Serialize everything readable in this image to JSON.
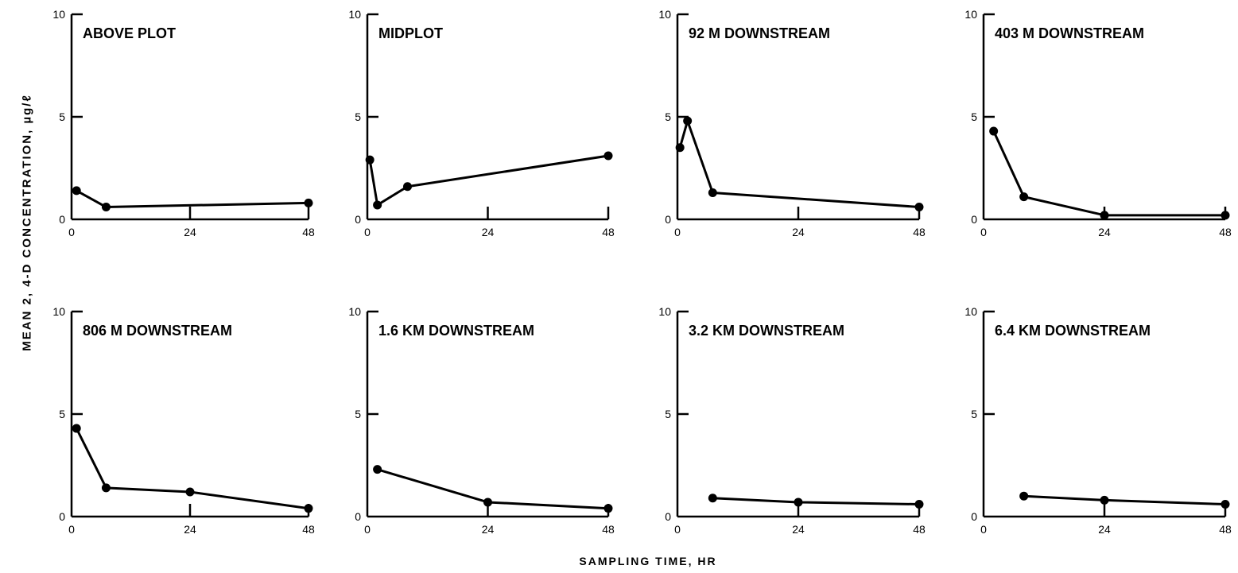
{
  "figure": {
    "ylabel": "MEAN 2, 4-D CONCENTRATION, µg/ℓ",
    "xlabel": "SAMPLING TIME, HR"
  },
  "chart_data": [
    {
      "type": "line",
      "title": "ABOVE PLOT",
      "x": [
        1,
        7,
        48
      ],
      "y": [
        1.4,
        0.6,
        0.8
      ],
      "xlim": [
        0,
        48
      ],
      "ylim": [
        0,
        10
      ],
      "xticks": [
        0,
        24,
        48
      ],
      "yticks": [
        0,
        5,
        10
      ],
      "grid": false
    },
    {
      "type": "line",
      "title": "MIDPLOT",
      "x": [
        0.5,
        2,
        8,
        48
      ],
      "y": [
        2.9,
        0.7,
        1.6,
        3.1
      ],
      "xlim": [
        0,
        48
      ],
      "ylim": [
        0,
        10
      ],
      "xticks": [
        0,
        24,
        48
      ],
      "yticks": [
        0,
        5,
        10
      ],
      "grid": false
    },
    {
      "type": "line",
      "title": "92 M DOWNSTREAM",
      "x": [
        0.5,
        2,
        7,
        48
      ],
      "y": [
        3.5,
        4.8,
        1.3,
        0.6
      ],
      "xlim": [
        0,
        48
      ],
      "ylim": [
        0,
        10
      ],
      "xticks": [
        0,
        24,
        48
      ],
      "yticks": [
        0,
        5,
        10
      ],
      "grid": false
    },
    {
      "type": "line",
      "title": "403 M DOWNSTREAM",
      "x": [
        2,
        8,
        24,
        48
      ],
      "y": [
        4.3,
        1.1,
        0.2,
        0.2
      ],
      "xlim": [
        0,
        48
      ],
      "ylim": [
        0,
        10
      ],
      "xticks": [
        0,
        24,
        48
      ],
      "yticks": [
        0,
        5,
        10
      ],
      "grid": false
    },
    {
      "type": "line",
      "title": "806 M DOWNSTREAM",
      "x": [
        1,
        7,
        24,
        48
      ],
      "y": [
        4.3,
        1.4,
        1.2,
        0.4
      ],
      "xlim": [
        0,
        48
      ],
      "ylim": [
        0,
        10
      ],
      "xticks": [
        0,
        24,
        48
      ],
      "yticks": [
        0,
        5,
        10
      ],
      "grid": false
    },
    {
      "type": "line",
      "title": "1.6 KM DOWNSTREAM",
      "x": [
        2,
        24,
        48
      ],
      "y": [
        2.3,
        0.7,
        0.4
      ],
      "xlim": [
        0,
        48
      ],
      "ylim": [
        0,
        10
      ],
      "xticks": [
        0,
        24,
        48
      ],
      "yticks": [
        0,
        5,
        10
      ],
      "grid": false
    },
    {
      "type": "line",
      "title": "3.2 KM DOWNSTREAM",
      "x": [
        7,
        24,
        48
      ],
      "y": [
        0.9,
        0.7,
        0.6
      ],
      "xlim": [
        0,
        48
      ],
      "ylim": [
        0,
        10
      ],
      "xticks": [
        0,
        24,
        48
      ],
      "yticks": [
        0,
        5,
        10
      ],
      "grid": false
    },
    {
      "type": "line",
      "title": "6.4 KM DOWNSTREAM",
      "x": [
        8,
        24,
        48
      ],
      "y": [
        1.0,
        0.8,
        0.6
      ],
      "xlim": [
        0,
        48
      ],
      "ylim": [
        0,
        10
      ],
      "xticks": [
        0,
        24,
        48
      ],
      "yticks": [
        0,
        5,
        10
      ],
      "grid": false
    }
  ]
}
